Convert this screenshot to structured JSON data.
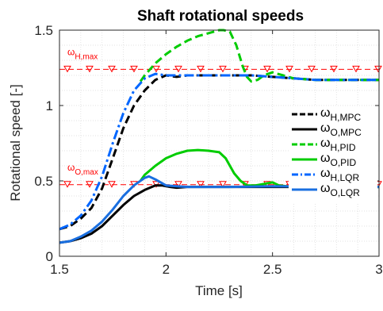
{
  "chart_data": {
    "type": "line",
    "title": "Shaft rotational speeds",
    "xlabel": "Time [s]",
    "ylabel": "Rotational speed [-]",
    "xlim": [
      1.5,
      3
    ],
    "ylim": [
      0,
      1.5
    ],
    "xticks": [
      "1.5",
      "2",
      "2.5",
      "3"
    ],
    "yticks": [
      "0",
      "0.5",
      "1",
      "1.5"
    ],
    "grid": true,
    "legend_position": "right",
    "limits": [
      {
        "symbol": "ω",
        "sub": "H,max",
        "value": 1.24,
        "color": "#ff0000",
        "marker": "triangle-down"
      },
      {
        "symbol": "ω",
        "sub": "O,max",
        "value": 0.475,
        "color": "#ff0000",
        "marker": "triangle-down"
      }
    ],
    "series": [
      {
        "symbol": "ω",
        "sub": "H,MPC",
        "color": "#000000",
        "dash": "dashed",
        "points": [
          [
            1.5,
            0.18
          ],
          [
            1.55,
            0.2
          ],
          [
            1.6,
            0.25
          ],
          [
            1.65,
            0.32
          ],
          [
            1.7,
            0.45
          ],
          [
            1.75,
            0.65
          ],
          [
            1.8,
            0.85
          ],
          [
            1.85,
            1.0
          ],
          [
            1.9,
            1.1
          ],
          [
            1.95,
            1.17
          ],
          [
            2.0,
            1.2
          ],
          [
            2.05,
            1.19
          ],
          [
            2.1,
            1.2
          ],
          [
            2.2,
            1.2
          ],
          [
            2.3,
            1.2
          ],
          [
            2.4,
            1.2
          ],
          [
            2.5,
            1.19
          ],
          [
            2.6,
            1.18
          ],
          [
            2.7,
            1.17
          ],
          [
            3.0,
            1.17
          ]
        ]
      },
      {
        "symbol": "ω",
        "sub": "O,MPC",
        "color": "#000000",
        "dash": "solid",
        "points": [
          [
            1.5,
            0.09
          ],
          [
            1.55,
            0.1
          ],
          [
            1.6,
            0.12
          ],
          [
            1.65,
            0.15
          ],
          [
            1.7,
            0.2
          ],
          [
            1.75,
            0.27
          ],
          [
            1.8,
            0.34
          ],
          [
            1.85,
            0.4
          ],
          [
            1.9,
            0.44
          ],
          [
            1.95,
            0.47
          ],
          [
            1.98,
            0.47
          ],
          [
            2.02,
            0.46
          ],
          [
            2.05,
            0.455
          ],
          [
            2.1,
            0.46
          ],
          [
            2.2,
            0.46
          ],
          [
            2.4,
            0.46
          ],
          [
            2.5,
            0.46
          ],
          [
            3.0,
            0.46
          ]
        ]
      },
      {
        "symbol": "ω",
        "sub": "H,PID",
        "color": "#00cc00",
        "dash": "dashed",
        "points": [
          [
            1.88,
            1.16
          ],
          [
            1.9,
            1.2
          ],
          [
            1.95,
            1.28
          ],
          [
            2.0,
            1.34
          ],
          [
            2.05,
            1.39
          ],
          [
            2.1,
            1.43
          ],
          [
            2.15,
            1.46
          ],
          [
            2.2,
            1.48
          ],
          [
            2.25,
            1.5
          ],
          [
            2.27,
            1.5
          ],
          [
            2.3,
            1.49
          ],
          [
            2.33,
            1.4
          ],
          [
            2.36,
            1.26
          ],
          [
            2.38,
            1.19
          ],
          [
            2.4,
            1.16
          ],
          [
            2.43,
            1.17
          ],
          [
            2.46,
            1.2
          ],
          [
            2.5,
            1.22
          ],
          [
            2.55,
            1.2
          ],
          [
            2.6,
            1.18
          ],
          [
            2.7,
            1.17
          ],
          [
            3.0,
            1.17
          ]
        ]
      },
      {
        "symbol": "ω",
        "sub": "O,PID",
        "color": "#00cc00",
        "dash": "solid",
        "points": [
          [
            1.88,
            0.5
          ],
          [
            1.9,
            0.54
          ],
          [
            1.95,
            0.6
          ],
          [
            2.0,
            0.65
          ],
          [
            2.05,
            0.68
          ],
          [
            2.1,
            0.7
          ],
          [
            2.15,
            0.705
          ],
          [
            2.2,
            0.7
          ],
          [
            2.25,
            0.69
          ],
          [
            2.28,
            0.65
          ],
          [
            2.32,
            0.55
          ],
          [
            2.35,
            0.5
          ],
          [
            2.38,
            0.47
          ],
          [
            2.42,
            0.47
          ],
          [
            2.46,
            0.48
          ],
          [
            2.5,
            0.49
          ],
          [
            2.53,
            0.47
          ],
          [
            2.6,
            0.46
          ],
          [
            3.0,
            0.46
          ]
        ]
      },
      {
        "symbol": "ω",
        "sub": "H,LQR",
        "color": "#0066ff",
        "dash": "dashdot",
        "points": [
          [
            1.5,
            0.18
          ],
          [
            1.55,
            0.21
          ],
          [
            1.6,
            0.27
          ],
          [
            1.65,
            0.37
          ],
          [
            1.7,
            0.53
          ],
          [
            1.75,
            0.75
          ],
          [
            1.8,
            0.95
          ],
          [
            1.85,
            1.1
          ],
          [
            1.9,
            1.18
          ],
          [
            1.95,
            1.21
          ],
          [
            2.0,
            1.2
          ],
          [
            2.1,
            1.2
          ],
          [
            2.2,
            1.2
          ],
          [
            2.4,
            1.2
          ],
          [
            2.5,
            1.19
          ],
          [
            2.7,
            1.17
          ],
          [
            3.0,
            1.17
          ]
        ]
      },
      {
        "symbol": "ω",
        "sub": "O,LQR",
        "color": "#1a6fe0",
        "dash": "solid",
        "points": [
          [
            1.5,
            0.09
          ],
          [
            1.55,
            0.1
          ],
          [
            1.6,
            0.13
          ],
          [
            1.65,
            0.17
          ],
          [
            1.7,
            0.23
          ],
          [
            1.75,
            0.31
          ],
          [
            1.8,
            0.4
          ],
          [
            1.85,
            0.47
          ],
          [
            1.9,
            0.52
          ],
          [
            1.92,
            0.53
          ],
          [
            1.95,
            0.51
          ],
          [
            2.0,
            0.47
          ],
          [
            2.05,
            0.465
          ],
          [
            2.1,
            0.46
          ],
          [
            2.3,
            0.46
          ],
          [
            2.5,
            0.465
          ],
          [
            3.0,
            0.46
          ]
        ]
      }
    ]
  }
}
